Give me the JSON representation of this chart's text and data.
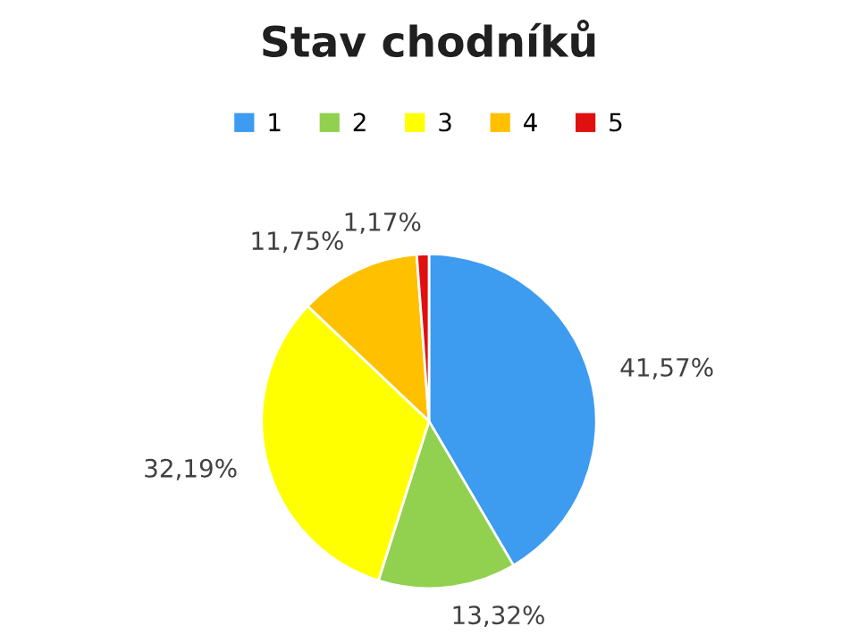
{
  "chart_data": {
    "type": "pie",
    "title": "Stav chodníků",
    "categories": [
      "1",
      "2",
      "3",
      "4",
      "5"
    ],
    "values": [
      41.57,
      13.32,
      32.19,
      11.75,
      1.17
    ],
    "value_labels": [
      "41,57%",
      "13,32%",
      "32,19%",
      "11,75%",
      "1,17%"
    ],
    "colors": [
      "#3d9bf0",
      "#92d050",
      "#ffff00",
      "#ffc000",
      "#e01010"
    ],
    "legend": "top"
  }
}
